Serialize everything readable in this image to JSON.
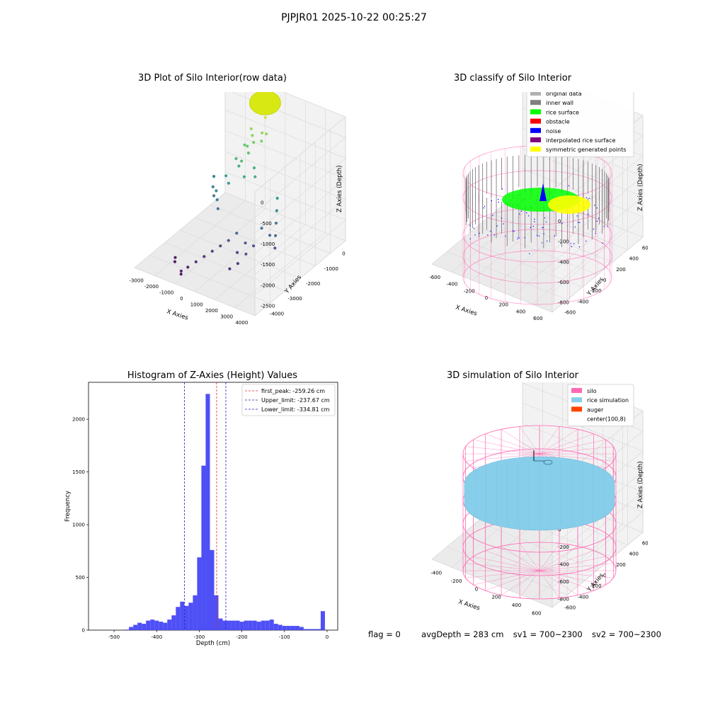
{
  "suptitle": "PJPJR01 2025-10-22 00:25:27",
  "colors": {
    "hist_bar": "#4646f5",
    "peak_line": "#e82a1a",
    "limit_line": "#2020c0",
    "silo": "#ff69b4",
    "rice": "#87ceeb",
    "auger": "#ff4500",
    "pane": "#f2f2f2",
    "grid": "#d9d9d9"
  },
  "chart_data": [
    {
      "type": "scatter",
      "title": "3D Plot of Silo Interior(row data)",
      "xlabel": "X Axies",
      "ylabel": "Y Axies",
      "zlabel": "Z Axies (Depth)",
      "x_ticks": [
        "-3000",
        "-2000",
        "-1000",
        "0",
        "1000",
        "2000",
        "3000",
        "4000"
      ],
      "y_ticks": [
        "0",
        "-1000",
        "-2000",
        "-3000",
        "-4000"
      ],
      "z_ticks": [
        "0",
        "-500",
        "-1000",
        "-1500",
        "-2000",
        "-2500"
      ],
      "xlim": [
        -3500,
        4500
      ],
      "ylim": [
        -4500,
        500
      ],
      "zlim": [
        -3000,
        0
      ],
      "colormap": "viridis",
      "points": [
        {
          "x": 200,
          "y": -400,
          "z": -100
        },
        {
          "x": 300,
          "y": -500,
          "z": -150
        },
        {
          "x": 400,
          "y": -300,
          "z": -80
        },
        {
          "x": 500,
          "y": -600,
          "z": -200
        },
        {
          "x": 350,
          "y": -450,
          "z": -120
        },
        {
          "x": 250,
          "y": -550,
          "z": -60
        },
        {
          "x": 450,
          "y": -350,
          "z": -180
        },
        {
          "x": 150,
          "y": -500,
          "z": -140
        },
        {
          "x": -200,
          "y": -800,
          "z": -500
        },
        {
          "x": 0,
          "y": -900,
          "z": -600
        },
        {
          "x": 200,
          "y": -1000,
          "z": -700
        },
        {
          "x": 400,
          "y": -700,
          "z": -550
        },
        {
          "x": 600,
          "y": -900,
          "z": -650
        },
        {
          "x": 800,
          "y": -800,
          "z": -480
        },
        {
          "x": -100,
          "y": -1100,
          "z": -800
        },
        {
          "x": 100,
          "y": -1200,
          "z": -900
        },
        {
          "x": -400,
          "y": -1000,
          "z": -850
        },
        {
          "x": -600,
          "y": -1300,
          "z": -1100
        },
        {
          "x": -300,
          "y": -1400,
          "z": -1200
        },
        {
          "x": 0,
          "y": -1500,
          "z": -1000
        },
        {
          "x": 300,
          "y": -1600,
          "z": -1300
        },
        {
          "x": -800,
          "y": -1700,
          "z": -1400
        },
        {
          "x": -500,
          "y": -1800,
          "z": -1500
        },
        {
          "x": 600,
          "y": -1300,
          "z": -1150
        },
        {
          "x": 900,
          "y": -1500,
          "z": -1250
        },
        {
          "x": -2200,
          "y": -1200,
          "z": -1800
        },
        {
          "x": -1900,
          "y": -1500,
          "z": -1900
        },
        {
          "x": -1600,
          "y": -1700,
          "z": -2000
        },
        {
          "x": -1200,
          "y": -1900,
          "z": -1750
        },
        {
          "x": -900,
          "y": -2100,
          "z": -1850
        },
        {
          "x": -600,
          "y": -2300,
          "z": -1950
        },
        {
          "x": 2500,
          "y": -1600,
          "z": -1500
        },
        {
          "x": 2700,
          "y": -1800,
          "z": -1700
        },
        {
          "x": 2900,
          "y": -2000,
          "z": -1900
        },
        {
          "x": 3100,
          "y": -2200,
          "z": -2100
        },
        {
          "x": 3300,
          "y": -2400,
          "z": -2300
        },
        {
          "x": 2600,
          "y": -2100,
          "z": -2200
        },
        {
          "x": 2300,
          "y": -2300,
          "z": -2000
        },
        {
          "x": 2000,
          "y": -2500,
          "z": -2400
        },
        {
          "x": 1700,
          "y": -2700,
          "z": -2300
        },
        {
          "x": 1400,
          "y": -2900,
          "z": -2500
        },
        {
          "x": 1000,
          "y": -2600,
          "z": -2200
        },
        {
          "x": 700,
          "y": -2800,
          "z": -2350
        },
        {
          "x": 400,
          "y": -3000,
          "z": -2450
        },
        {
          "x": 100,
          "y": -3200,
          "z": -2550
        },
        {
          "x": -200,
          "y": -3400,
          "z": -2650
        },
        {
          "x": -500,
          "y": -3600,
          "z": -2750
        },
        {
          "x": -800,
          "y": -3800,
          "z": -2850
        },
        {
          "x": 1800,
          "y": -3200,
          "z": -2600
        },
        {
          "x": 2100,
          "y": -3000,
          "z": -2400
        },
        {
          "x": 1500,
          "y": -3400,
          "z": -2700
        },
        {
          "x": -2000,
          "y": -3500,
          "z": -2900
        },
        {
          "x": -1900,
          "y": -3600,
          "z": -2950
        },
        {
          "x": -1000,
          "y": -4000,
          "z": -2900
        },
        {
          "x": -950,
          "y": -4050,
          "z": -2950
        }
      ],
      "cluster": {
        "x": 300,
        "y": -450,
        "z": -100
      }
    },
    {
      "type": "scatter",
      "title": "3D classify of Silo Interior",
      "xlabel": "X Axies",
      "ylabel": "Y Axies",
      "zlabel": "Z Axies (Depth)",
      "x_ticks": [
        "-600",
        "-400",
        "-200",
        "0",
        "200",
        "400",
        "600"
      ],
      "y_ticks": [
        "600",
        "400",
        "200",
        "0",
        "-200",
        "-400",
        "-600"
      ],
      "z_ticks": [
        "200",
        "0",
        "-200",
        "-400",
        "-600",
        "-800"
      ],
      "legend_position": "top-right",
      "legend": [
        {
          "label": "original data",
          "color": "#b0b0b0"
        },
        {
          "label": "inner wall",
          "color": "#808080"
        },
        {
          "label": "rice surface",
          "color": "#00ff00"
        },
        {
          "label": "obstacle",
          "color": "#ff0000"
        },
        {
          "label": "noise",
          "color": "#0000ff"
        },
        {
          "label": "interpolated rice surface",
          "color": "#800080"
        },
        {
          "label": "symmetric generated points",
          "color": "#ffff00"
        }
      ]
    },
    {
      "type": "bar",
      "title": "Histogram of Z-Axies (Height) Values",
      "xlabel": "Depth (cm)",
      "ylabel": "Frequency",
      "xlim": [
        -560,
        25
      ],
      "ylim": [
        0,
        2350
      ],
      "x_ticks": [
        -500,
        -400,
        -300,
        -200,
        -100,
        0
      ],
      "y_ticks": [
        0,
        500,
        1000,
        1500,
        2000
      ],
      "bin_width": 10,
      "bins": [
        {
          "x": -470,
          "v": 5
        },
        {
          "x": -460,
          "v": 30
        },
        {
          "x": -450,
          "v": 50
        },
        {
          "x": -440,
          "v": 70
        },
        {
          "x": -430,
          "v": 60
        },
        {
          "x": -420,
          "v": 90
        },
        {
          "x": -410,
          "v": 100
        },
        {
          "x": -400,
          "v": 90
        },
        {
          "x": -390,
          "v": 80
        },
        {
          "x": -380,
          "v": 70
        },
        {
          "x": -370,
          "v": 100
        },
        {
          "x": -360,
          "v": 140
        },
        {
          "x": -350,
          "v": 220
        },
        {
          "x": -340,
          "v": 270
        },
        {
          "x": -330,
          "v": 230
        },
        {
          "x": -320,
          "v": 260
        },
        {
          "x": -310,
          "v": 330
        },
        {
          "x": -300,
          "v": 690
        },
        {
          "x": -290,
          "v": 1560
        },
        {
          "x": -280,
          "v": 2240
        },
        {
          "x": -270,
          "v": 760
        },
        {
          "x": -260,
          "v": 330
        },
        {
          "x": -250,
          "v": 110
        },
        {
          "x": -240,
          "v": 90
        },
        {
          "x": -230,
          "v": 90
        },
        {
          "x": -220,
          "v": 90
        },
        {
          "x": -210,
          "v": 90
        },
        {
          "x": -200,
          "v": 80
        },
        {
          "x": -190,
          "v": 90
        },
        {
          "x": -180,
          "v": 90
        },
        {
          "x": -170,
          "v": 90
        },
        {
          "x": -160,
          "v": 80
        },
        {
          "x": -150,
          "v": 90
        },
        {
          "x": -140,
          "v": 90
        },
        {
          "x": -130,
          "v": 100
        },
        {
          "x": -120,
          "v": 60
        },
        {
          "x": -110,
          "v": 50
        },
        {
          "x": -100,
          "v": 40
        },
        {
          "x": -90,
          "v": 40
        },
        {
          "x": -80,
          "v": 40
        },
        {
          "x": -70,
          "v": 40
        },
        {
          "x": -60,
          "v": 30
        },
        {
          "x": -50,
          "v": 10
        },
        {
          "x": -40,
          "v": 10
        },
        {
          "x": -30,
          "v": 10
        },
        {
          "x": -20,
          "v": 10
        },
        {
          "x": -10,
          "v": 180
        }
      ],
      "lines": [
        {
          "label": "first_peak: -259.26 cm",
          "x": -259.26,
          "color": "#e82a1a"
        },
        {
          "label": "Upper_limit: -237.67 cm",
          "x": -237.67,
          "color": "#2020c0"
        },
        {
          "label": "Lower_limit: -334.81 cm",
          "x": -334.81,
          "color": "#2020c0"
        }
      ],
      "legend_position": "top-right"
    },
    {
      "type": "surface",
      "title": "3D simulation of Silo Interior",
      "xlabel": "X Axies",
      "ylabel": "Y Axies",
      "zlabel": "Z Axies (Depth)",
      "x_ticks": [
        "-400",
        "-200",
        "0",
        "200",
        "400",
        "600"
      ],
      "y_ticks": [
        "600",
        "400",
        "200",
        "0",
        "-200",
        "-400",
        "-600"
      ],
      "z_ticks": [
        "400",
        "200",
        "0",
        "-200",
        "-400",
        "-600",
        "-800"
      ],
      "legend_position": "top-right",
      "legend": [
        {
          "label": "silo",
          "color": "#ff69b4"
        },
        {
          "label": "rice simulation",
          "color": "#87ceeb"
        },
        {
          "label": "auger",
          "color": "#ff4500"
        },
        {
          "label": "center(100,8)",
          "color": ""
        }
      ]
    }
  ],
  "footer": {
    "flag": "flag = 0",
    "avg": "avgDepth = 283 cm",
    "sv1": "sv1 = 700~2300",
    "sv2": "sv2 = 700~2300"
  }
}
